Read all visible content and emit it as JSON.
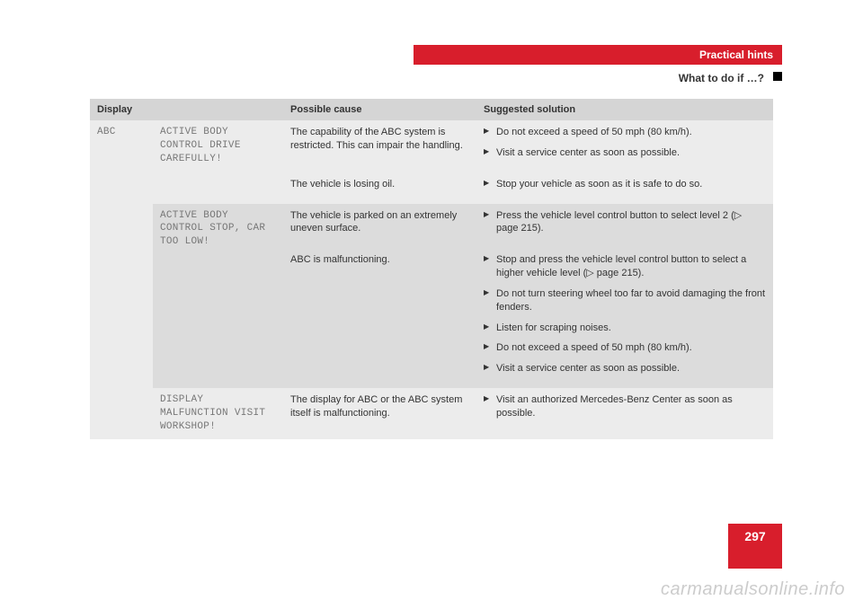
{
  "header": {
    "category": "Practical hints",
    "section": "What to do if …?"
  },
  "table": {
    "columns": [
      "Display",
      "Possible cause",
      "Suggested solution"
    ],
    "system": "ABC",
    "groups": [
      {
        "shade": "light",
        "display": "ACTIVE BODY CONTROL DRIVE CAREFULLY!",
        "rows": [
          {
            "cause": "The capability of the ABC system is restricted. This can impair the handling.",
            "solutions": [
              "Do not exceed a speed of 50 mph (80 km/h).",
              "Visit a service center as soon as possible."
            ]
          },
          {
            "cause": "The vehicle is losing oil.",
            "solutions": [
              "Stop your vehicle as soon as it is safe to do so."
            ]
          }
        ]
      },
      {
        "shade": "dark",
        "display": "ACTIVE BODY CONTROL STOP, CAR TOO LOW!",
        "rows": [
          {
            "cause": "The vehicle is parked on an extremely uneven surface.",
            "solutions": [
              "Press the vehicle level control button to select level 2 (▷ page 215)."
            ]
          },
          {
            "cause": "ABC is malfunctioning.",
            "solutions": [
              "Stop and press the vehicle level control button to select a higher vehicle level (▷ page 215).",
              "Do not turn steering wheel too far to avoid damaging the front fenders.",
              "Listen for scraping noises.",
              "Do not exceed a speed of 50 mph (80 km/h).",
              "Visit a service center as soon as possible."
            ]
          }
        ]
      },
      {
        "shade": "light",
        "display": "DISPLAY MALFUNCTION VISIT WORKSHOP!",
        "rows": [
          {
            "cause": "The display for ABC or the ABC system itself is malfunctioning.",
            "solutions": [
              "Visit an authorized Mercedes-Benz Center as soon as possible."
            ]
          }
        ]
      }
    ]
  },
  "pageNumber": "297",
  "watermark": "carmanualsonline.info"
}
